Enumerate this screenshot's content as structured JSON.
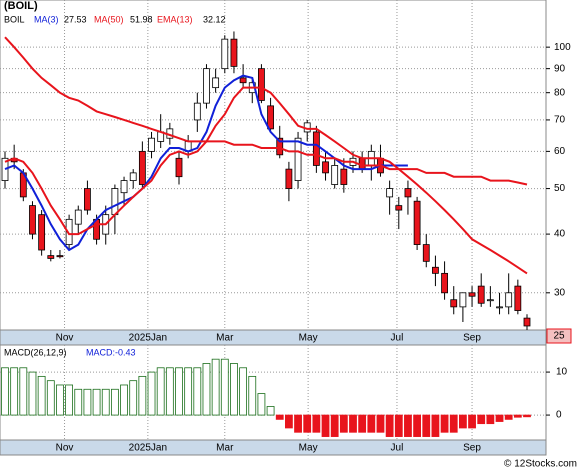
{
  "chart_data": {
    "type": "candlestick",
    "title": "(BOIL)",
    "legend": {
      "symbol": "BOIL",
      "ma3_label": "MA(3)",
      "ma3_value": "27.53",
      "ma50_label": "MA(50)",
      "ma50_value": "51.98",
      "ema13_label": "EMA(13)",
      "ema13_value": "32.12"
    },
    "log_scale": true,
    "grid": true,
    "ylim": [
      25,
      126
    ],
    "yticks": [
      30,
      40,
      50,
      60,
      70,
      80,
      90,
      100
    ],
    "last_label": "25",
    "xlim": [
      -0.5,
      57.5
    ],
    "xticks": [
      {
        "value": 6.5,
        "label": "Nov"
      },
      {
        "value": 15.6,
        "label": "2025Jan"
      },
      {
        "value": 24,
        "label": "Mar"
      },
      {
        "value": 33.1,
        "label": "May"
      },
      {
        "value": 42.8,
        "label": "Jul"
      },
      {
        "value": 51,
        "label": "Sep"
      }
    ],
    "up_color": "#ffffff",
    "down_color": "#e8141c",
    "open": [
      52,
      58,
      54,
      46,
      44,
      36,
      36,
      38,
      42,
      50,
      43,
      40,
      44,
      49,
      52,
      60,
      60,
      63,
      64,
      58,
      60,
      70,
      76,
      82,
      90,
      104,
      86,
      80,
      90,
      75,
      64,
      55,
      52,
      66,
      66,
      57,
      51,
      55,
      56,
      58,
      56,
      58,
      48,
      46,
      50,
      47,
      38,
      34,
      33,
      29,
      28,
      30,
      31,
      29,
      28,
      28,
      31,
      26.5
    ],
    "high": [
      60,
      62,
      55,
      47,
      45,
      37,
      37,
      44,
      46,
      52,
      44,
      46,
      51,
      53,
      55,
      63,
      66,
      72,
      69,
      60,
      65,
      80,
      92,
      90,
      106,
      108,
      92,
      86,
      92,
      78,
      68,
      57,
      66,
      70,
      68,
      60,
      58,
      58,
      60,
      60,
      62,
      62,
      52,
      48,
      52,
      48,
      40,
      36,
      35,
      31,
      30,
      31,
      33,
      31,
      30,
      33,
      32,
      27
    ],
    "low": [
      50,
      55,
      47,
      39,
      36,
      35,
      35.5,
      37,
      40,
      44,
      38,
      38,
      40,
      46,
      50,
      50,
      58,
      61,
      62,
      51,
      58,
      66,
      74,
      80,
      88,
      88,
      82,
      76,
      76,
      66,
      58,
      47,
      50,
      63,
      54,
      52,
      50,
      49,
      54,
      54,
      52,
      53,
      44,
      41,
      44,
      37,
      34,
      31,
      29,
      27,
      26,
      28,
      28,
      28,
      27,
      27,
      27,
      25
    ],
    "close": [
      58,
      57,
      48,
      40,
      37,
      35.5,
      35.8,
      43,
      45,
      45,
      39,
      44,
      50,
      52,
      54,
      51,
      64,
      66,
      67,
      53,
      63,
      76,
      90,
      86,
      104,
      91,
      84,
      84,
      77,
      67,
      59,
      50,
      64,
      69,
      56,
      54,
      56,
      51,
      58,
      55,
      60,
      54,
      50,
      45,
      48,
      38,
      35,
      33,
      30,
      28,
      30,
      29.5,
      28.5,
      29,
      28,
      30,
      27.5,
      25.5
    ],
    "series": [
      {
        "name": "MA(3)",
        "color": "#1020d8",
        "values": [
          55,
          56,
          54,
          50,
          46,
          42,
          39,
          37,
          38,
          41,
          43,
          45,
          46,
          47,
          48,
          50,
          53,
          58,
          61,
          61,
          60,
          61,
          66,
          75,
          82,
          85,
          87,
          86,
          72,
          66,
          63,
          63,
          63,
          62,
          62,
          60,
          58,
          56,
          55,
          55,
          55,
          56,
          56,
          56,
          56,
          null,
          null,
          null,
          null,
          null,
          null,
          null,
          null,
          null,
          null,
          null,
          null,
          null
        ]
      },
      {
        "name": "EMA(13)",
        "color": "#e8141c",
        "values": [
          57,
          58,
          57,
          54,
          50,
          46,
          43,
          40,
          40,
          41,
          42,
          42,
          44,
          46,
          48,
          50,
          52,
          56,
          59,
          60,
          59,
          60,
          63,
          68,
          72,
          78,
          82,
          82,
          82,
          80,
          76,
          72,
          68,
          67,
          67,
          65,
          63,
          61,
          59,
          58,
          58,
          58,
          57,
          55,
          53,
          51,
          49,
          47,
          45,
          43,
          41,
          39,
          38,
          37,
          36,
          35,
          34,
          33
        ]
      },
      {
        "name": "MA(50)",
        "color": "#e8141c",
        "values": [
          105,
          100,
          95,
          90,
          86,
          83,
          80,
          78,
          77,
          75,
          73,
          72,
          71,
          70,
          69,
          68,
          67,
          66,
          65,
          64,
          63,
          63,
          63,
          63,
          63,
          62,
          62,
          62,
          61,
          61,
          61,
          60,
          60,
          59,
          59,
          58,
          58,
          57,
          57,
          56,
          56,
          56,
          55,
          55,
          55,
          55,
          54,
          54,
          54,
          53,
          53,
          53,
          53,
          52,
          52,
          52,
          51.5,
          51
        ]
      }
    ],
    "macd": {
      "title": "MACD(26,12,9)",
      "value_text": "MACD:-0.43",
      "y2lim": [
        -5.8,
        16.3
      ],
      "y2ticks": [
        0,
        10
      ],
      "pos_color": "#1a6e1a",
      "neg_color": "#e8141c",
      "values": [
        11,
        11,
        11,
        10,
        9,
        8,
        7,
        7,
        6,
        6,
        6,
        6,
        6,
        7,
        8,
        9,
        10,
        11,
        11,
        11,
        11,
        11,
        12,
        13,
        13,
        12,
        11,
        9,
        5,
        2,
        -1,
        -3,
        -4,
        -4,
        -4,
        -5,
        -5,
        -4,
        -4,
        -4,
        -4,
        -4,
        -5,
        -5,
        -5,
        -5,
        -5,
        -5,
        -4,
        -4,
        -3,
        -3,
        -2,
        -2,
        -1.5,
        -1,
        -0.5,
        -0.4
      ]
    },
    "footer": "© 12Stocks.com"
  }
}
